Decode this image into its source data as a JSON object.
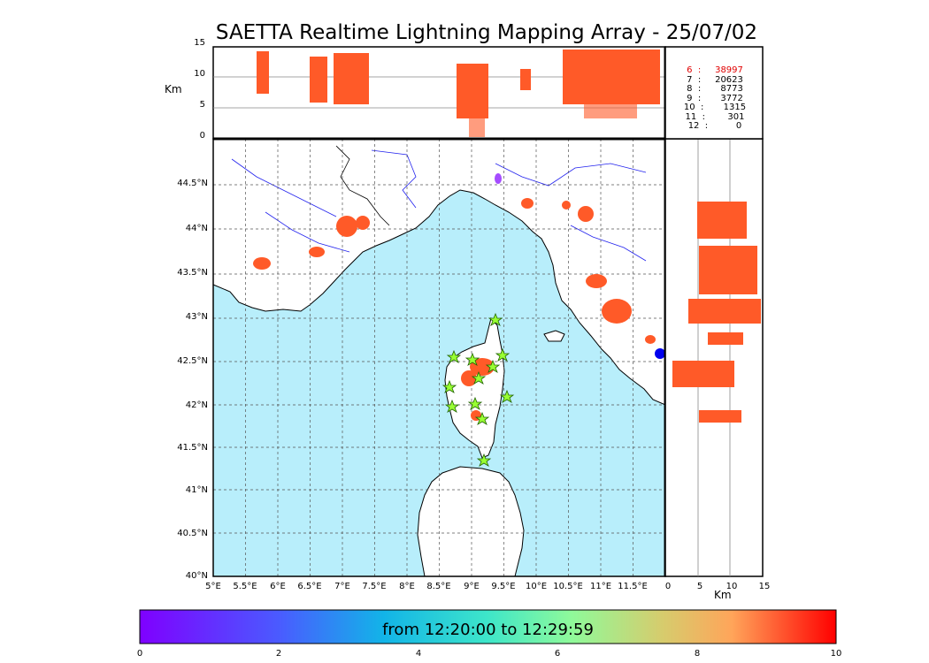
{
  "title": "SAETTA Realtime Lightning Mapping Array - 25/07/02",
  "alt_unit": "Km",
  "alt_ticks": [
    "0",
    "5",
    "10",
    "15"
  ],
  "lat_ticks": [
    "40°N",
    "40.5°N",
    "41°N",
    "41.5°N",
    "42°N",
    "42.5°N",
    "43°N",
    "43.5°N",
    "44°N",
    "44.5°N"
  ],
  "lon_ticks": [
    "5°E",
    "5.5°E",
    "6°E",
    "6.5°E",
    "7°E",
    "7.5°E",
    "8°E",
    "8.5°E",
    "9°E",
    "9.5°E",
    "10°E",
    "10.5°E",
    "11°E",
    "11.5°E"
  ],
  "right_km_ticks": [
    "0",
    "5",
    "10",
    "15"
  ],
  "right_km_unit": "Km",
  "counts": [
    {
      "label": "6  :     38997",
      "color": "#e00000"
    },
    {
      "label": "7  :     20623",
      "color": "#000000"
    },
    {
      "label": "8  :       8773",
      "color": "#000000"
    },
    {
      "label": "9  :       3772",
      "color": "#000000"
    },
    {
      "label": "10  :       1315",
      "color": "#000000"
    },
    {
      "label": "11  :        301",
      "color": "#000000"
    },
    {
      "label": "12  :          0",
      "color": "#000000"
    }
  ],
  "colorbar": {
    "label": "from 12:20:00 to 12:29:59",
    "ticks": [
      "0",
      "2",
      "4",
      "6",
      "8",
      "10"
    ]
  },
  "colors": {
    "sea": "#b8eefb",
    "land": "#ffffff",
    "main_flash": "#ff5a28",
    "station": "#99ff33"
  }
}
